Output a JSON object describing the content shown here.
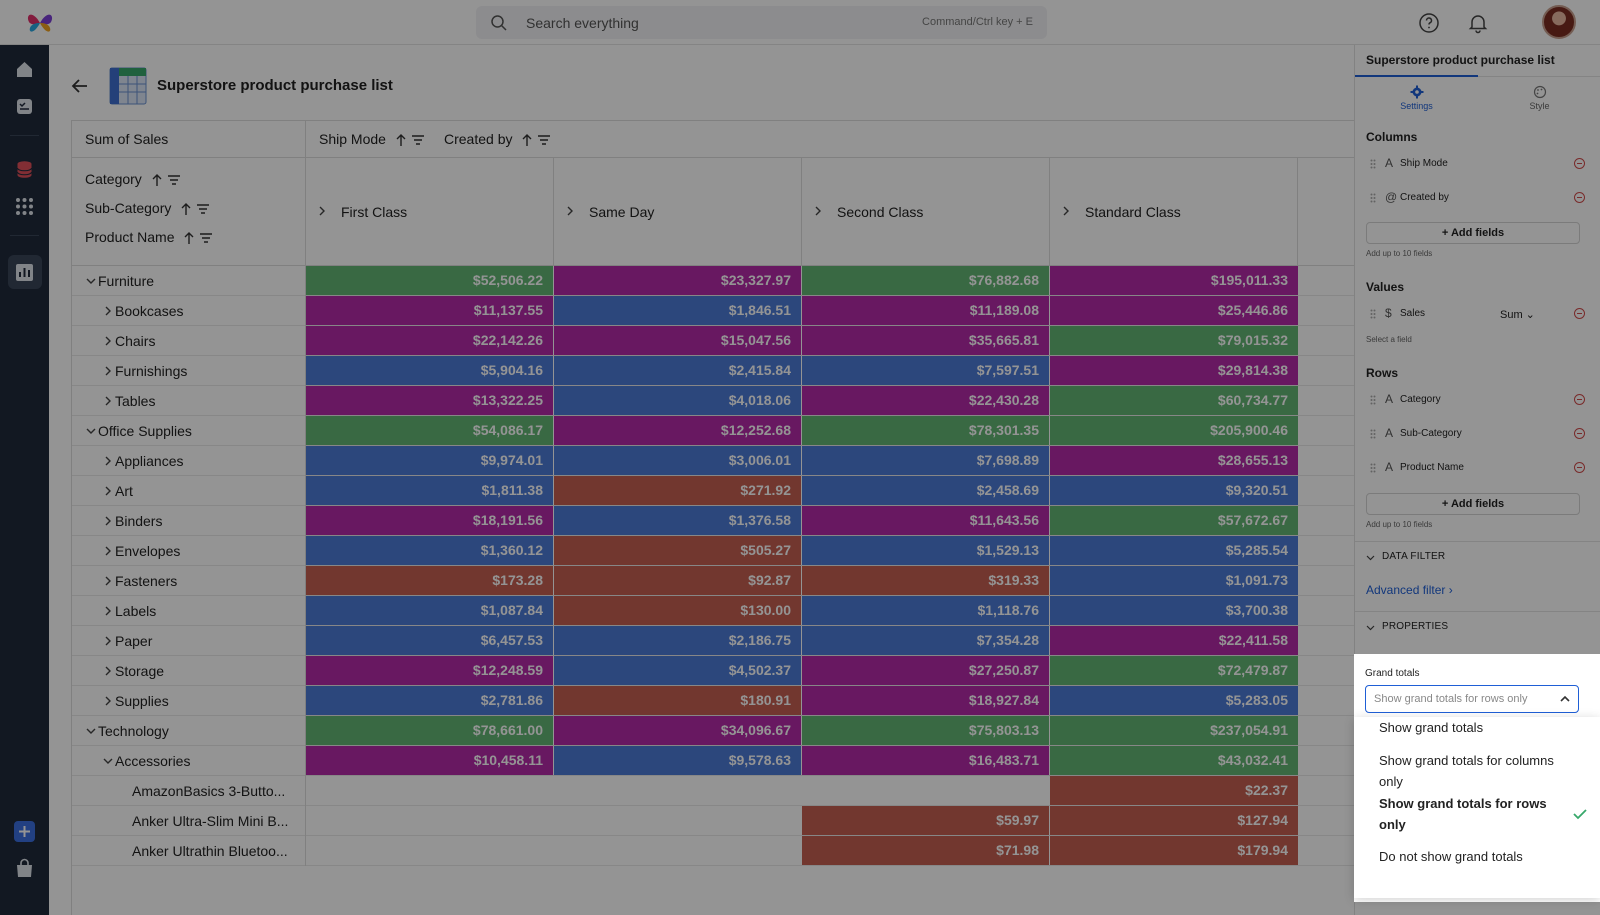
{
  "header": {
    "search_placeholder": "Search everything",
    "search_shortcut": "Command/Ctrl key + E"
  },
  "page": {
    "title": "Superstore product purchase list"
  },
  "pivot": {
    "value_label": "Sum of Sales",
    "column_fields": [
      "Ship Mode",
      "Created by"
    ],
    "row_fields": [
      "Category",
      "Sub-Category",
      "Product Name"
    ],
    "columns": [
      "First Class",
      "Same Day",
      "Second Class",
      "Standard Class"
    ],
    "rows": [
      {
        "label": "Furniture",
        "level": 0,
        "expanded": true,
        "values": [
          "$52,506.22",
          "$23,327.97",
          "$76,882.68",
          "$195,011.33"
        ],
        "colors": [
          "green",
          "purple",
          "green",
          "purple"
        ]
      },
      {
        "label": "Bookcases",
        "level": 1,
        "expanded": false,
        "values": [
          "$11,137.55",
          "$1,846.51",
          "$11,189.08",
          "$25,446.86"
        ],
        "colors": [
          "purple",
          "blue",
          "purple",
          "purple"
        ]
      },
      {
        "label": "Chairs",
        "level": 1,
        "expanded": false,
        "values": [
          "$22,142.26",
          "$15,047.56",
          "$35,665.81",
          "$79,015.32"
        ],
        "colors": [
          "purple",
          "purple",
          "purple",
          "green"
        ]
      },
      {
        "label": "Furnishings",
        "level": 1,
        "expanded": false,
        "values": [
          "$5,904.16",
          "$2,415.84",
          "$7,597.51",
          "$29,814.38"
        ],
        "colors": [
          "blue",
          "blue",
          "blue",
          "purple"
        ]
      },
      {
        "label": "Tables",
        "level": 1,
        "expanded": false,
        "values": [
          "$13,322.25",
          "$4,018.06",
          "$22,430.28",
          "$60,734.77"
        ],
        "colors": [
          "purple",
          "blue",
          "purple",
          "green"
        ]
      },
      {
        "label": "Office Supplies",
        "level": 0,
        "expanded": true,
        "values": [
          "$54,086.17",
          "$12,252.68",
          "$78,301.35",
          "$205,900.46"
        ],
        "colors": [
          "green",
          "purple",
          "green",
          "green"
        ]
      },
      {
        "label": "Appliances",
        "level": 1,
        "expanded": false,
        "values": [
          "$9,974.01",
          "$3,006.01",
          "$7,698.89",
          "$28,655.13"
        ],
        "colors": [
          "blue",
          "blue",
          "blue",
          "purple"
        ]
      },
      {
        "label": "Art",
        "level": 1,
        "expanded": false,
        "values": [
          "$1,811.38",
          "$271.92",
          "$2,458.69",
          "$9,320.51"
        ],
        "colors": [
          "blue",
          "red",
          "blue",
          "blue"
        ]
      },
      {
        "label": "Binders",
        "level": 1,
        "expanded": false,
        "values": [
          "$18,191.56",
          "$1,376.58",
          "$11,643.56",
          "$57,672.67"
        ],
        "colors": [
          "purple",
          "blue",
          "purple",
          "green"
        ]
      },
      {
        "label": "Envelopes",
        "level": 1,
        "expanded": false,
        "values": [
          "$1,360.12",
          "$505.27",
          "$1,529.13",
          "$5,285.54"
        ],
        "colors": [
          "blue",
          "red",
          "blue",
          "blue"
        ]
      },
      {
        "label": "Fasteners",
        "level": 1,
        "expanded": false,
        "values": [
          "$173.28",
          "$92.87",
          "$319.33",
          "$1,091.73"
        ],
        "colors": [
          "red",
          "red",
          "red",
          "blue"
        ]
      },
      {
        "label": "Labels",
        "level": 1,
        "expanded": false,
        "values": [
          "$1,087.84",
          "$130.00",
          "$1,118.76",
          "$3,700.38"
        ],
        "colors": [
          "blue",
          "red",
          "blue",
          "blue"
        ]
      },
      {
        "label": "Paper",
        "level": 1,
        "expanded": false,
        "values": [
          "$6,457.53",
          "$2,186.75",
          "$7,354.28",
          "$22,411.58"
        ],
        "colors": [
          "blue",
          "blue",
          "blue",
          "purple"
        ]
      },
      {
        "label": "Storage",
        "level": 1,
        "expanded": false,
        "values": [
          "$12,248.59",
          "$4,502.37",
          "$27,250.87",
          "$72,479.87"
        ],
        "colors": [
          "purple",
          "blue",
          "purple",
          "green"
        ]
      },
      {
        "label": "Supplies",
        "level": 1,
        "expanded": false,
        "values": [
          "$2,781.86",
          "$180.91",
          "$18,927.84",
          "$5,283.05"
        ],
        "colors": [
          "blue",
          "red",
          "purple",
          "blue"
        ]
      },
      {
        "label": "Technology",
        "level": 0,
        "expanded": true,
        "values": [
          "$78,661.00",
          "$34,096.67",
          "$75,803.13",
          "$237,054.91"
        ],
        "colors": [
          "green",
          "purple",
          "green",
          "green"
        ]
      },
      {
        "label": "Accessories",
        "level": 1,
        "expanded": true,
        "values": [
          "$10,458.11",
          "$9,578.63",
          "$16,483.71",
          "$43,032.41"
        ],
        "colors": [
          "purple",
          "blue",
          "purple",
          "green"
        ]
      },
      {
        "label": "AmazonBasics 3-Butto...",
        "level": 2,
        "expanded": false,
        "values": [
          "",
          "",
          "",
          "$22.37"
        ],
        "colors": [
          "",
          "",
          "",
          "red"
        ]
      },
      {
        "label": "Anker Ultra-Slim Mini B...",
        "level": 2,
        "expanded": false,
        "values": [
          "",
          "",
          "$59.97",
          "$127.94"
        ],
        "colors": [
          "",
          "",
          "red",
          "red"
        ]
      },
      {
        "label": "Anker Ultrathin Bluetoo...",
        "level": 2,
        "expanded": false,
        "values": [
          "",
          "",
          "$71.98",
          "$179.94"
        ],
        "colors": [
          "",
          "",
          "red",
          "red"
        ]
      }
    ]
  },
  "panel": {
    "title": "Superstore product purchase list",
    "tabs": [
      "Settings",
      "Style"
    ],
    "columns_heading": "Columns",
    "column_fields": [
      {
        "name": "Ship Mode",
        "type": "A"
      },
      {
        "name": "Created by",
        "type": "@"
      }
    ],
    "add_fields_label": "Add fields",
    "add_hint": "Add up to 10 fields",
    "values_heading": "Values",
    "value_field": {
      "name": "Sales",
      "type": "$",
      "agg": "Sum"
    },
    "select_field_hint": "Select a field",
    "rows_heading": "Rows",
    "row_fields": [
      {
        "name": "Category",
        "type": "A"
      },
      {
        "name": "Sub-Category",
        "type": "A"
      },
      {
        "name": "Product Name",
        "type": "A"
      }
    ],
    "data_filter_label": "DATA FILTER",
    "advanced_filter_label": "Advanced filter",
    "properties_label": "PROPERTIES",
    "grand_totals_label": "Grand totals",
    "grand_totals_value": "Show grand totals for rows only",
    "grand_totals_options": [
      "Show grand totals",
      "Show grand totals for columns only",
      "Show grand totals for rows only",
      "Do not show grand totals"
    ],
    "grand_totals_selected_index": 2
  },
  "colors": {
    "green": "#62b574",
    "purple": "#b42aa7",
    "blue": "#4d7bd6",
    "red": "#c45f51",
    "accent": "#1f5fd6",
    "sidebar": "#1f2a3c"
  }
}
